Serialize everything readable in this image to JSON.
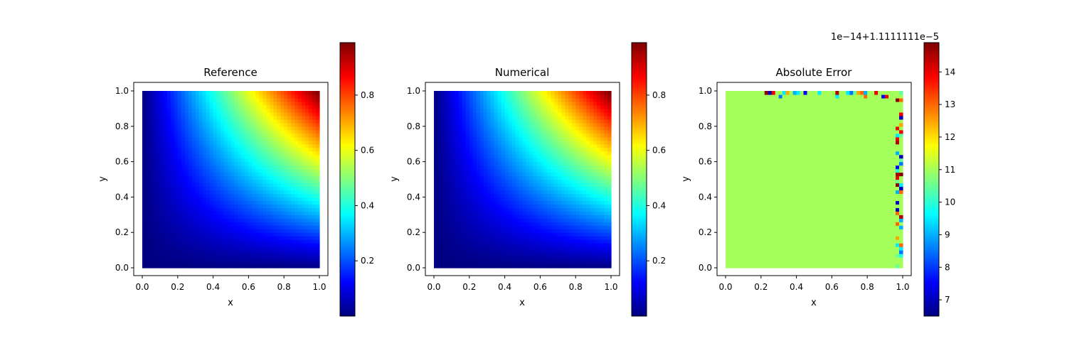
{
  "figure": {
    "colormap": "jet",
    "grid": false,
    "colorbar_placement": "right of each panel"
  },
  "chart_data": [
    {
      "type": "heatmap",
      "title": "Reference",
      "xlabel": "x",
      "ylabel": "y",
      "xlim": [
        0.0,
        1.0
      ],
      "ylim": [
        0.0,
        1.0
      ],
      "xticks": [
        "0.0",
        "0.2",
        "0.4",
        "0.6",
        "0.8",
        "1.0"
      ],
      "yticks": [
        "0.0",
        "0.2",
        "0.4",
        "0.6",
        "0.8",
        "1.0"
      ],
      "field": "x*y",
      "grid_points": 50,
      "colorbar": {
        "min": 0.0,
        "max": 0.99,
        "ticks": [
          "0.2",
          "0.4",
          "0.6",
          "0.8"
        ],
        "offset_text": ""
      }
    },
    {
      "type": "heatmap",
      "title": "Numerical",
      "xlabel": "x",
      "ylabel": "y",
      "xlim": [
        0.0,
        1.0
      ],
      "ylim": [
        0.0,
        1.0
      ],
      "xticks": [
        "0.0",
        "0.2",
        "0.4",
        "0.6",
        "0.8",
        "1.0"
      ],
      "yticks": [
        "0.0",
        "0.2",
        "0.4",
        "0.6",
        "0.8",
        "1.0"
      ],
      "field": "x*y",
      "grid_points": 50,
      "colorbar": {
        "min": 0.0,
        "max": 0.99,
        "ticks": [
          "0.2",
          "0.4",
          "0.6",
          "0.8"
        ],
        "offset_text": ""
      }
    },
    {
      "type": "heatmap",
      "title": "Absolute Error",
      "xlabel": "x",
      "ylabel": "y",
      "xlim": [
        0.0,
        1.0
      ],
      "ylim": [
        0.0,
        1.0
      ],
      "xticks": [
        "0.0",
        "0.2",
        "0.4",
        "0.6",
        "0.8",
        "1.0"
      ],
      "yticks": [
        "0.0",
        "0.2",
        "0.4",
        "0.6",
        "0.8",
        "1.0"
      ],
      "field": "near-constant error with noisy right and top edges",
      "grid_points": 50,
      "base_value": 11.0,
      "edge_values": [
        14.5,
        7.0,
        9.5,
        13.0,
        10.0,
        14.0,
        8.5,
        12.5,
        9.0,
        14.8,
        10.5,
        7.5
      ],
      "colorbar": {
        "min": 6.5,
        "max": 14.9,
        "ticks": [
          "7",
          "8",
          "9",
          "10",
          "11",
          "12",
          "13",
          "14"
        ],
        "offset_text": "1e−14+1.1111111e−5"
      }
    }
  ]
}
